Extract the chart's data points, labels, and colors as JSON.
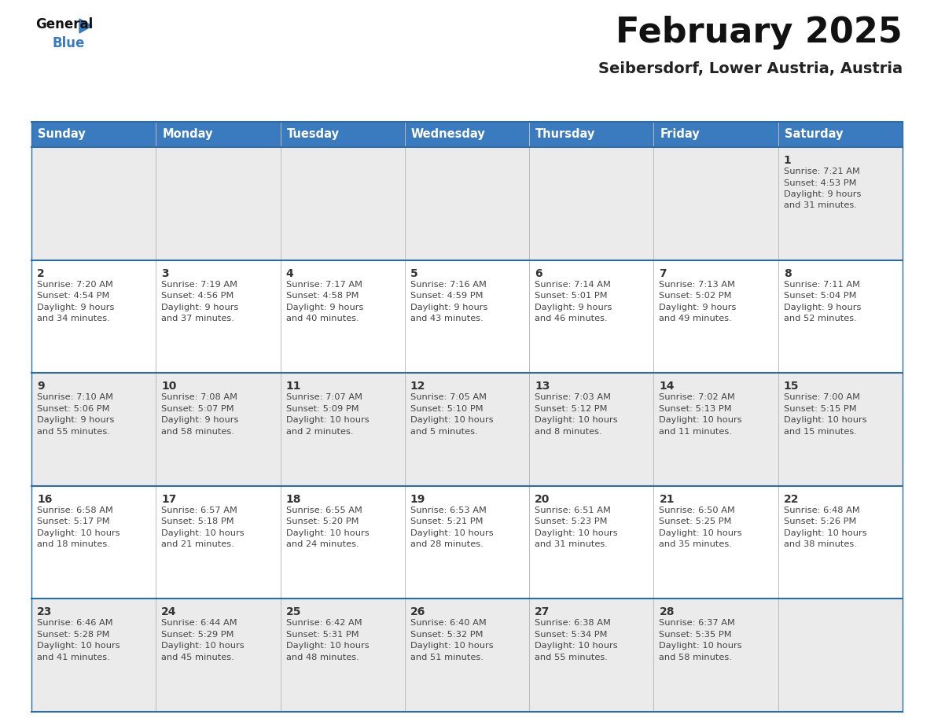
{
  "title": "February 2025",
  "subtitle": "Seibersdorf, Lower Austria, Austria",
  "header_bg": "#3a7abf",
  "header_text": "#ffffff",
  "day_names": [
    "Sunday",
    "Monday",
    "Tuesday",
    "Wednesday",
    "Thursday",
    "Friday",
    "Saturday"
  ],
  "cell_bg_odd": "#ebebeb",
  "cell_bg_even": "#ffffff",
  "grid_line_color": "#2e6da4",
  "day_num_color": "#333333",
  "day_text_color": "#444444",
  "days": [
    {
      "day": 1,
      "col": 6,
      "row": 0,
      "sunrise": "7:21 AM",
      "sunset": "4:53 PM",
      "daylight_h": "9 hours",
      "daylight_m": "31 minutes"
    },
    {
      "day": 2,
      "col": 0,
      "row": 1,
      "sunrise": "7:20 AM",
      "sunset": "4:54 PM",
      "daylight_h": "9 hours",
      "daylight_m": "34 minutes"
    },
    {
      "day": 3,
      "col": 1,
      "row": 1,
      "sunrise": "7:19 AM",
      "sunset": "4:56 PM",
      "daylight_h": "9 hours",
      "daylight_m": "37 minutes"
    },
    {
      "day": 4,
      "col": 2,
      "row": 1,
      "sunrise": "7:17 AM",
      "sunset": "4:58 PM",
      "daylight_h": "9 hours",
      "daylight_m": "40 minutes"
    },
    {
      "day": 5,
      "col": 3,
      "row": 1,
      "sunrise": "7:16 AM",
      "sunset": "4:59 PM",
      "daylight_h": "9 hours",
      "daylight_m": "43 minutes"
    },
    {
      "day": 6,
      "col": 4,
      "row": 1,
      "sunrise": "7:14 AM",
      "sunset": "5:01 PM",
      "daylight_h": "9 hours",
      "daylight_m": "46 minutes"
    },
    {
      "day": 7,
      "col": 5,
      "row": 1,
      "sunrise": "7:13 AM",
      "sunset": "5:02 PM",
      "daylight_h": "9 hours",
      "daylight_m": "49 minutes"
    },
    {
      "day": 8,
      "col": 6,
      "row": 1,
      "sunrise": "7:11 AM",
      "sunset": "5:04 PM",
      "daylight_h": "9 hours",
      "daylight_m": "52 minutes"
    },
    {
      "day": 9,
      "col": 0,
      "row": 2,
      "sunrise": "7:10 AM",
      "sunset": "5:06 PM",
      "daylight_h": "9 hours",
      "daylight_m": "55 minutes"
    },
    {
      "day": 10,
      "col": 1,
      "row": 2,
      "sunrise": "7:08 AM",
      "sunset": "5:07 PM",
      "daylight_h": "9 hours",
      "daylight_m": "58 minutes"
    },
    {
      "day": 11,
      "col": 2,
      "row": 2,
      "sunrise": "7:07 AM",
      "sunset": "5:09 PM",
      "daylight_h": "10 hours",
      "daylight_m": "2 minutes"
    },
    {
      "day": 12,
      "col": 3,
      "row": 2,
      "sunrise": "7:05 AM",
      "sunset": "5:10 PM",
      "daylight_h": "10 hours",
      "daylight_m": "5 minutes"
    },
    {
      "day": 13,
      "col": 4,
      "row": 2,
      "sunrise": "7:03 AM",
      "sunset": "5:12 PM",
      "daylight_h": "10 hours",
      "daylight_m": "8 minutes"
    },
    {
      "day": 14,
      "col": 5,
      "row": 2,
      "sunrise": "7:02 AM",
      "sunset": "5:13 PM",
      "daylight_h": "10 hours",
      "daylight_m": "11 minutes"
    },
    {
      "day": 15,
      "col": 6,
      "row": 2,
      "sunrise": "7:00 AM",
      "sunset": "5:15 PM",
      "daylight_h": "10 hours",
      "daylight_m": "15 minutes"
    },
    {
      "day": 16,
      "col": 0,
      "row": 3,
      "sunrise": "6:58 AM",
      "sunset": "5:17 PM",
      "daylight_h": "10 hours",
      "daylight_m": "18 minutes"
    },
    {
      "day": 17,
      "col": 1,
      "row": 3,
      "sunrise": "6:57 AM",
      "sunset": "5:18 PM",
      "daylight_h": "10 hours",
      "daylight_m": "21 minutes"
    },
    {
      "day": 18,
      "col": 2,
      "row": 3,
      "sunrise": "6:55 AM",
      "sunset": "5:20 PM",
      "daylight_h": "10 hours",
      "daylight_m": "24 minutes"
    },
    {
      "day": 19,
      "col": 3,
      "row": 3,
      "sunrise": "6:53 AM",
      "sunset": "5:21 PM",
      "daylight_h": "10 hours",
      "daylight_m": "28 minutes"
    },
    {
      "day": 20,
      "col": 4,
      "row": 3,
      "sunrise": "6:51 AM",
      "sunset": "5:23 PM",
      "daylight_h": "10 hours",
      "daylight_m": "31 minutes"
    },
    {
      "day": 21,
      "col": 5,
      "row": 3,
      "sunrise": "6:50 AM",
      "sunset": "5:25 PM",
      "daylight_h": "10 hours",
      "daylight_m": "35 minutes"
    },
    {
      "day": 22,
      "col": 6,
      "row": 3,
      "sunrise": "6:48 AM",
      "sunset": "5:26 PM",
      "daylight_h": "10 hours",
      "daylight_m": "38 minutes"
    },
    {
      "day": 23,
      "col": 0,
      "row": 4,
      "sunrise": "6:46 AM",
      "sunset": "5:28 PM",
      "daylight_h": "10 hours",
      "daylight_m": "41 minutes"
    },
    {
      "day": 24,
      "col": 1,
      "row": 4,
      "sunrise": "6:44 AM",
      "sunset": "5:29 PM",
      "daylight_h": "10 hours",
      "daylight_m": "45 minutes"
    },
    {
      "day": 25,
      "col": 2,
      "row": 4,
      "sunrise": "6:42 AM",
      "sunset": "5:31 PM",
      "daylight_h": "10 hours",
      "daylight_m": "48 minutes"
    },
    {
      "day": 26,
      "col": 3,
      "row": 4,
      "sunrise": "6:40 AM",
      "sunset": "5:32 PM",
      "daylight_h": "10 hours",
      "daylight_m": "51 minutes"
    },
    {
      "day": 27,
      "col": 4,
      "row": 4,
      "sunrise": "6:38 AM",
      "sunset": "5:34 PM",
      "daylight_h": "10 hours",
      "daylight_m": "55 minutes"
    },
    {
      "day": 28,
      "col": 5,
      "row": 4,
      "sunrise": "6:37 AM",
      "sunset": "5:35 PM",
      "daylight_h": "10 hours",
      "daylight_m": "58 minutes"
    }
  ]
}
